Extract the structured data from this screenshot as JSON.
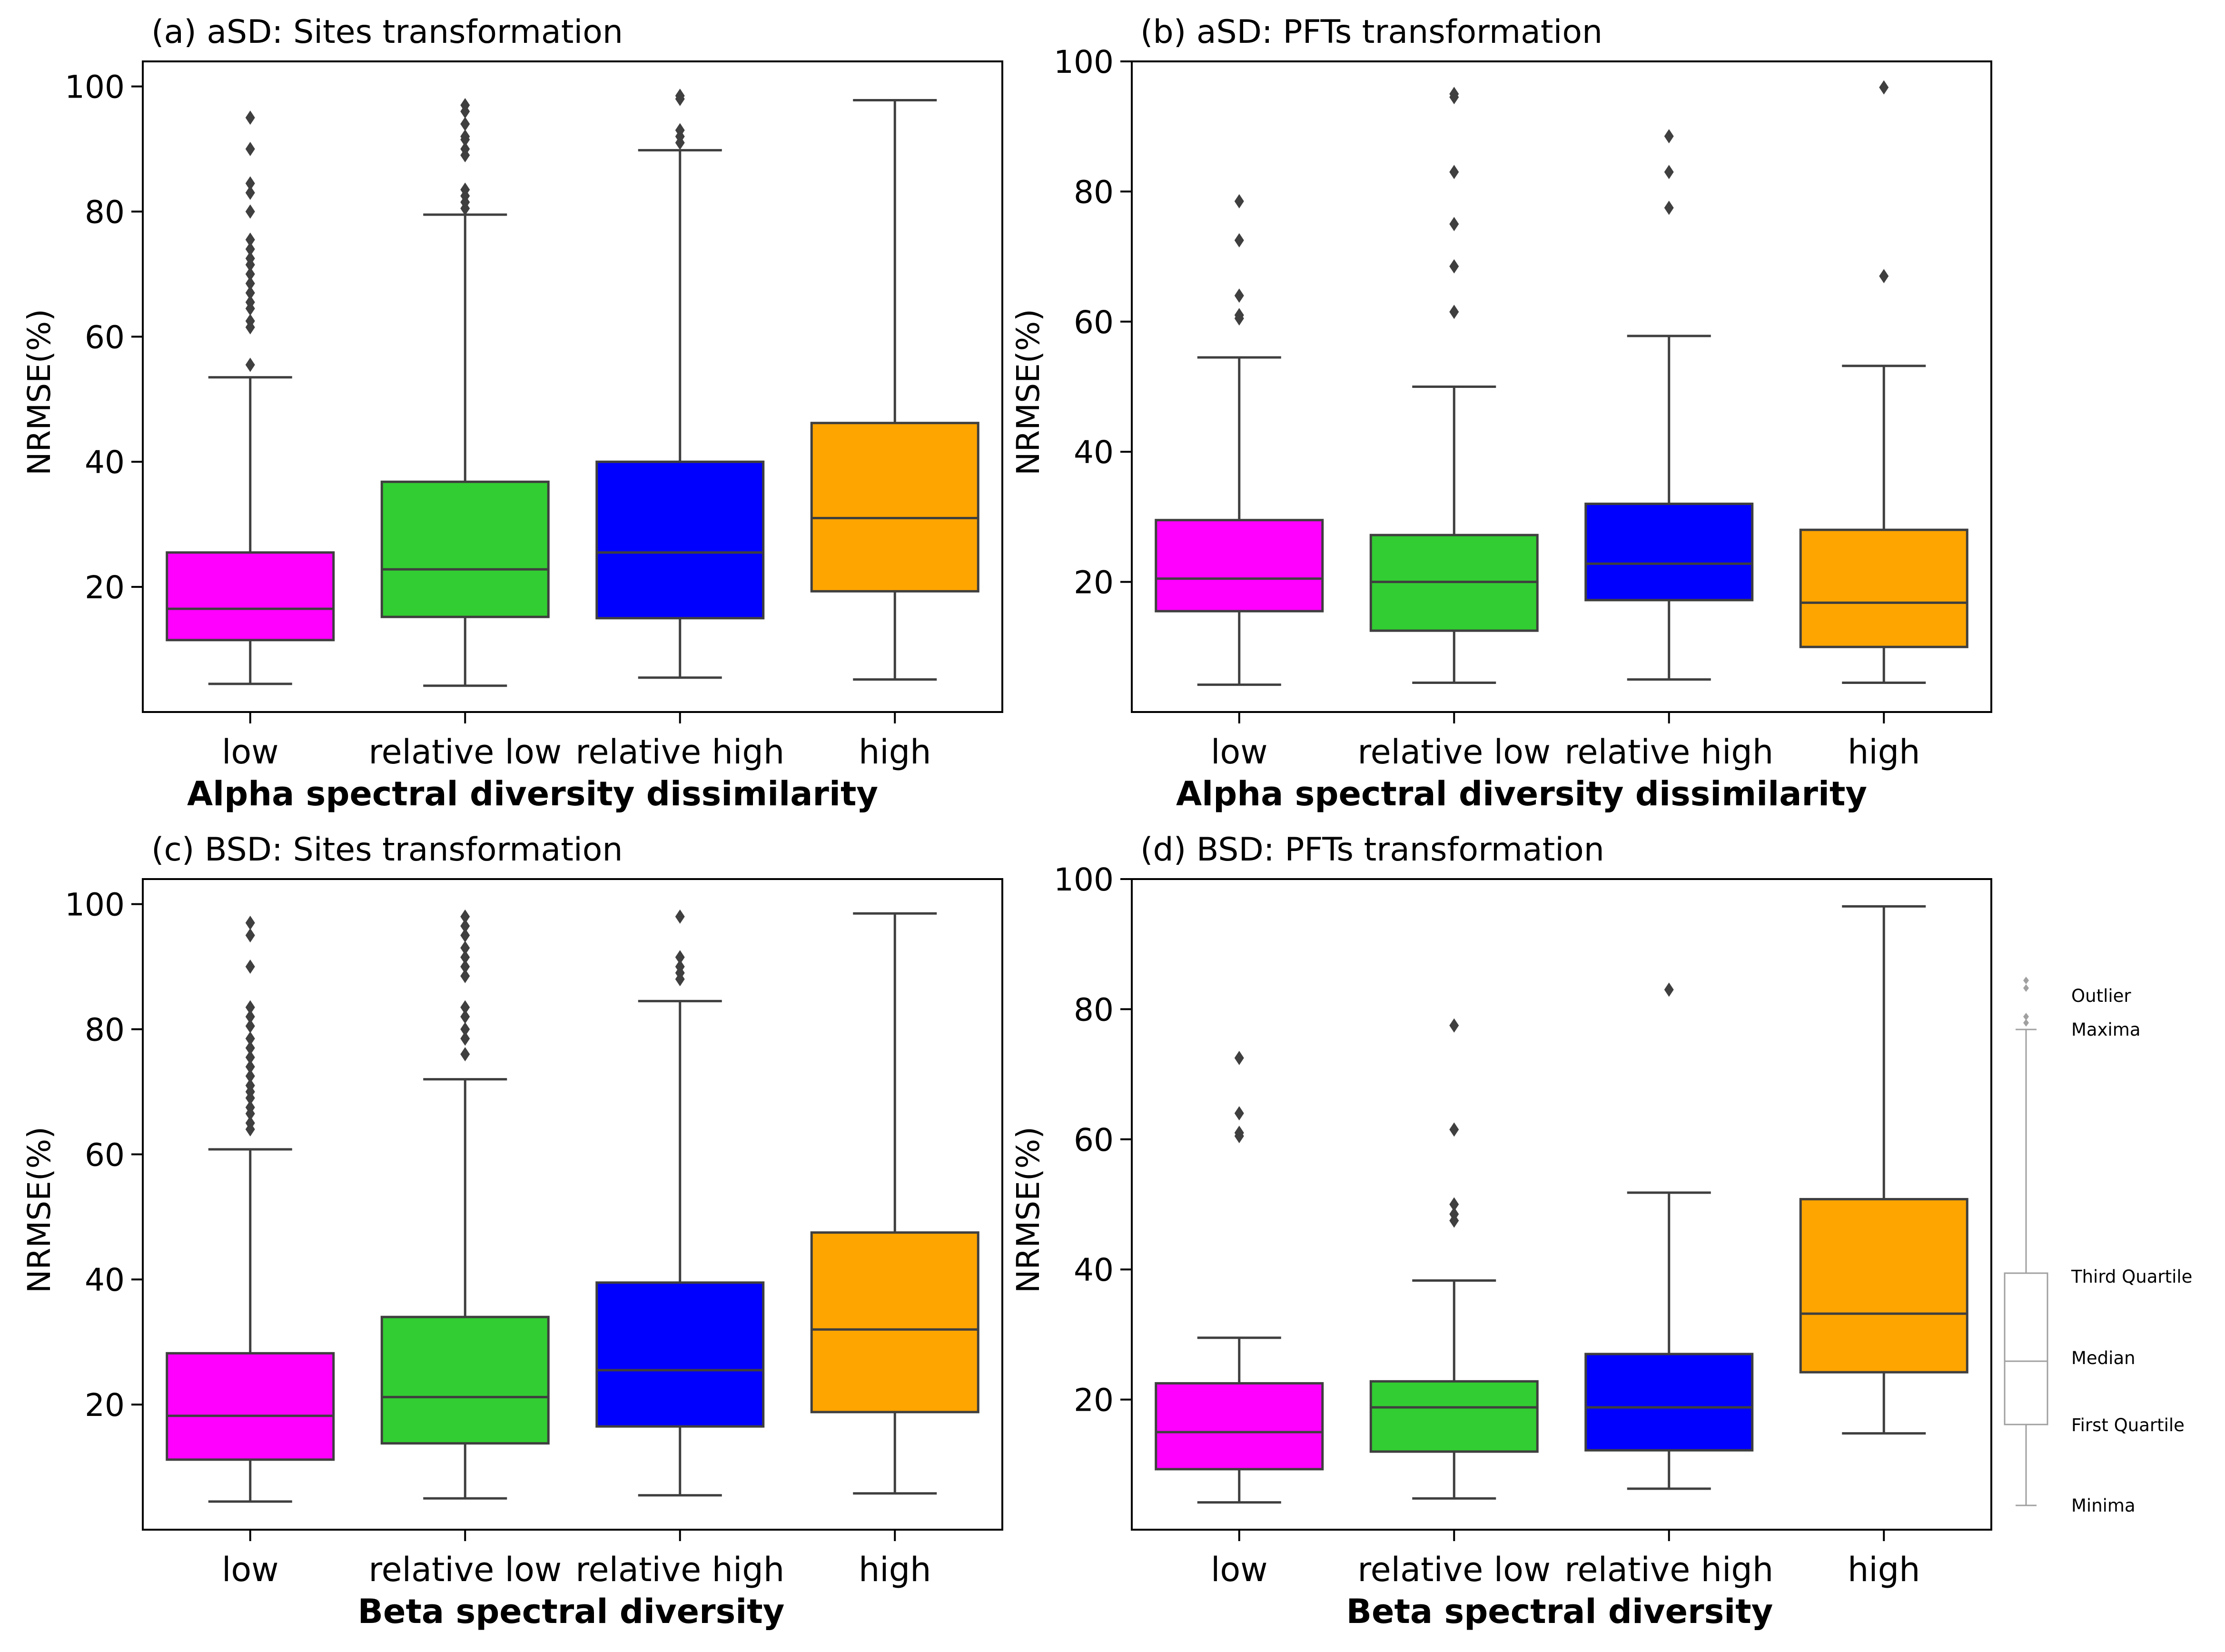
{
  "colors": {
    "low": "#ff00ff",
    "relative_low": "#32cd32",
    "relative_high": "#0000ff",
    "high": "#ffa500",
    "line": "#3f3f3f",
    "legend_line": "#a0a0a0"
  },
  "chart_data": [
    {
      "type": "box",
      "panel": "a",
      "title": "(a) aSD: Sites transformation",
      "xlabel": "Alpha spectral diversity dissimilarity",
      "ylabel": "NRMSE(%)",
      "ylim": [
        0,
        104
      ],
      "yticks": [
        20,
        40,
        60,
        80,
        100
      ],
      "categories": [
        "low",
        "relative low",
        "relative high",
        "high"
      ],
      "boxes": [
        {
          "min": 4.5,
          "q1": 11.5,
          "median": 16.5,
          "q3": 25.5,
          "max": 53.5,
          "outliers": [
            55.5,
            61.5,
            62.5,
            64.5,
            65.5,
            67,
            68.5,
            70,
            71.5,
            72.5,
            74,
            75.5,
            80,
            83,
            84.5,
            90,
            95
          ]
        },
        {
          "min": 4.2,
          "q1": 15.2,
          "median": 22.8,
          "q3": 36.8,
          "max": 79.5,
          "outliers": [
            80.5,
            81.5,
            82.5,
            83.5,
            89,
            90,
            91.5,
            92,
            94,
            96,
            97
          ]
        },
        {
          "min": 5.5,
          "q1": 15,
          "median": 25.5,
          "q3": 40,
          "max": 89.8,
          "outliers": [
            91,
            92,
            93,
            98,
            98.5
          ]
        },
        {
          "min": 5.2,
          "q1": 19.3,
          "median": 31,
          "q3": 46.2,
          "max": 97.8,
          "outliers": []
        }
      ]
    },
    {
      "type": "box",
      "panel": "b",
      "title": "(b) aSD: PFTs transformation",
      "xlabel": "Alpha spectral diversity dissimilarity",
      "ylabel": "NRMSE(%)",
      "ylim": [
        0,
        100
      ],
      "yticks": [
        20,
        40,
        60,
        80,
        100
      ],
      "categories": [
        "low",
        "relative low",
        "relative high",
        "high"
      ],
      "boxes": [
        {
          "min": 4.2,
          "q1": 15.5,
          "median": 20.5,
          "q3": 29.5,
          "max": 54.5,
          "outliers": [
            60.5,
            61,
            64,
            72.5,
            78.5
          ]
        },
        {
          "min": 4.5,
          "q1": 12.5,
          "median": 20,
          "q3": 27.2,
          "max": 50,
          "outliers": [
            61.5,
            68.5,
            75,
            83,
            94.5,
            95
          ]
        },
        {
          "min": 5,
          "q1": 17.2,
          "median": 22.8,
          "q3": 32,
          "max": 57.8,
          "outliers": [
            77.5,
            83,
            88.5
          ]
        },
        {
          "min": 4.5,
          "q1": 10,
          "median": 16.8,
          "q3": 28,
          "max": 53.2,
          "outliers": [
            67,
            96
          ]
        }
      ]
    },
    {
      "type": "box",
      "panel": "c",
      "title": "(c) BSD: Sites transformation",
      "xlabel": "Beta spectral diversity",
      "ylabel": "NRMSE(%)",
      "ylim": [
        0,
        104
      ],
      "yticks": [
        20,
        40,
        60,
        80,
        100
      ],
      "categories": [
        "low",
        "relative low",
        "relative high",
        "high"
      ],
      "boxes": [
        {
          "min": 4.5,
          "q1": 11.2,
          "median": 18.2,
          "q3": 28.2,
          "max": 60.8,
          "outliers": [
            64,
            65,
            66.5,
            67.5,
            69,
            70,
            71,
            72.5,
            74,
            75.5,
            77,
            78.5,
            80.5,
            82,
            83.5,
            90,
            95,
            97
          ]
        },
        {
          "min": 5,
          "q1": 13.8,
          "median": 21.2,
          "q3": 34,
          "max": 72,
          "outliers": [
            76,
            78.5,
            80,
            82,
            83.5,
            88.5,
            90,
            91.5,
            93,
            95,
            96.5,
            98
          ]
        },
        {
          "min": 5.5,
          "q1": 16.5,
          "median": 25.5,
          "q3": 39.5,
          "max": 84.5,
          "outliers": [
            88,
            89,
            90,
            91.5,
            98
          ]
        },
        {
          "min": 5.8,
          "q1": 18.8,
          "median": 32,
          "q3": 47.5,
          "max": 98.5,
          "outliers": []
        }
      ]
    },
    {
      "type": "box",
      "panel": "d",
      "title": "(d) BSD: PFTs transformation",
      "xlabel": "Beta spectral diversity",
      "ylabel": "NRMSE(%)",
      "ylim": [
        0,
        100
      ],
      "yticks": [
        20,
        40,
        60,
        80,
        100
      ],
      "categories": [
        "low",
        "relative low",
        "relative high",
        "high"
      ],
      "boxes": [
        {
          "min": 4.2,
          "q1": 9.3,
          "median": 15,
          "q3": 22.5,
          "max": 29.5,
          "outliers": [
            60.5,
            61,
            64,
            72.5
          ]
        },
        {
          "min": 4.8,
          "q1": 12,
          "median": 18.8,
          "q3": 22.8,
          "max": 38.3,
          "outliers": [
            47.5,
            48.5,
            50,
            61.5,
            77.5
          ]
        },
        {
          "min": 6.3,
          "q1": 12.2,
          "median": 18.8,
          "q3": 27,
          "max": 51.8,
          "outliers": [
            83
          ]
        },
        {
          "min": 14.8,
          "q1": 24.2,
          "median": 33.2,
          "q3": 50.8,
          "max": 95.8,
          "outliers": []
        }
      ]
    }
  ],
  "legend": {
    "outlier": "Outlier",
    "maxima": "Maxima",
    "third_quartile": "Third Quartile",
    "median": "Median",
    "first_quartile": "First Quartile",
    "minima": "Minima"
  }
}
